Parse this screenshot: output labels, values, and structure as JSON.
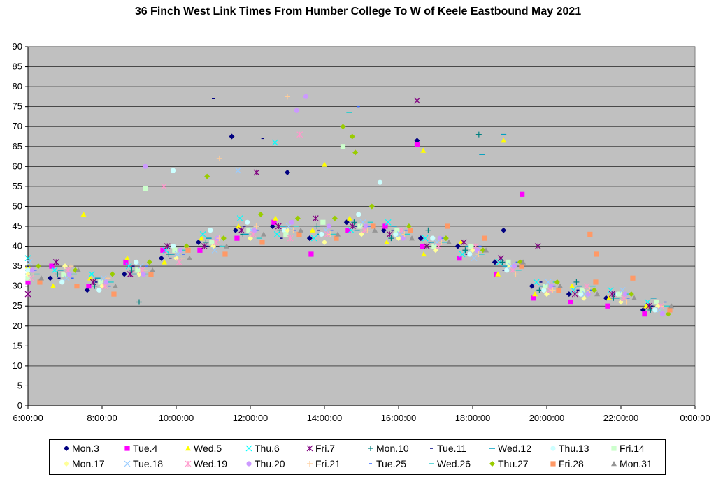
{
  "chart_data": {
    "type": "scatter",
    "title": "36 Finch West Link Times From Humber College To W of Keele Eastbound May 2021",
    "xlabel": "",
    "ylabel": "",
    "ylim": [
      0,
      90
    ],
    "yticks": [
      "0",
      "5",
      "10",
      "15",
      "20",
      "25",
      "30",
      "35",
      "40",
      "45",
      "50",
      "55",
      "60",
      "65",
      "70",
      "75",
      "80",
      "85",
      "90"
    ],
    "xlim": [
      "6:00:00",
      "0:00:00"
    ],
    "xticks": [
      "6:00:00",
      "8:00:00",
      "10:00:00",
      "12:00:00",
      "14:00:00",
      "16:00:00",
      "18:00:00",
      "20:00:00",
      "22:00:00",
      "0:00:00"
    ],
    "grid": "horizontal",
    "background": "#c0c0c0",
    "legend_position": "bottom",
    "x": [
      "6:00",
      "7:00",
      "8:00",
      "9:00",
      "10:00",
      "11:00",
      "12:00",
      "13:00",
      "14:00",
      "15:00",
      "16:00",
      "17:00",
      "18:00",
      "19:00",
      "20:00",
      "21:00",
      "22:00",
      "23:00"
    ],
    "series": [
      {
        "name": "Mon.3",
        "color": "#000080",
        "marker": "diamond",
        "values": [
          34,
          32,
          29,
          33,
          37,
          41,
          44,
          45,
          42,
          46,
          44,
          42,
          40,
          36,
          30,
          28,
          27,
          24
        ],
        "outliers": [
          [
            "11:30",
            67.5
          ],
          [
            "13:00",
            58.5
          ],
          [
            "16:30",
            66.5
          ],
          [
            "18:50",
            44
          ]
        ]
      },
      {
        "name": "Tue.4",
        "color": "#ff00ff",
        "marker": "square",
        "values": [
          31,
          35,
          30,
          36,
          39,
          39,
          42,
          46,
          38,
          44,
          45,
          40,
          37,
          33,
          27,
          26,
          25,
          23
        ],
        "outliers": [
          [
            "16:30",
            65.5
          ],
          [
            "19:20",
            53
          ]
        ]
      },
      {
        "name": "Wed.5",
        "color": "#ffff00",
        "marker": "triangle",
        "values": [
          35,
          30,
          32,
          37,
          36,
          42,
          45,
          47,
          44,
          47,
          41,
          38,
          41,
          33,
          28,
          30,
          27,
          25
        ],
        "outliers": [
          [
            "7:30",
            48
          ],
          [
            "14:00",
            60.5
          ],
          [
            "16:40",
            64
          ],
          [
            "18:50",
            66.5
          ]
        ]
      },
      {
        "name": "Thu.6",
        "color": "#00ffff",
        "marker": "x",
        "values": [
          37,
          34,
          33,
          35,
          39,
          43,
          47,
          43,
          42,
          44,
          46,
          42,
          38,
          36,
          31,
          29,
          29,
          26
        ],
        "outliers": [
          [
            "12:40",
            66
          ]
        ]
      },
      {
        "name": "Fri.7",
        "color": "#800080",
        "marker": "star",
        "values": [
          28,
          36,
          31,
          33,
          40,
          40,
          44,
          45,
          47,
          45,
          43,
          40,
          41,
          37,
          40,
          28,
          28,
          25
        ],
        "outliers": [
          [
            "16:30",
            76.5
          ],
          [
            "12:10",
            58.5
          ]
        ]
      },
      {
        "name": "Mon.10",
        "color": "#008080",
        "marker": "plus",
        "values": [
          34,
          33,
          30,
          34,
          38,
          41,
          43,
          44,
          45,
          46,
          42,
          44,
          39,
          36,
          29,
          31,
          27,
          24
        ],
        "outliers": [
          [
            "18:10",
            68
          ],
          [
            "9:00",
            26
          ]
        ]
      },
      {
        "name": "Tue.11",
        "color": "#000080",
        "marker": "dash",
        "values": [
          35,
          32,
          31,
          35,
          37,
          40,
          45,
          42,
          44,
          45,
          44,
          41,
          38,
          34,
          31,
          29,
          28,
          25
        ],
        "outliers": [
          [
            "11:00",
            77
          ],
          [
            "12:20",
            67
          ]
        ]
      },
      {
        "name": "Wed.12",
        "color": "#00a0c0",
        "marker": "longdash",
        "values": [
          33,
          34,
          32,
          33,
          38,
          42,
          43,
          45,
          43,
          44,
          45,
          41,
          40,
          35,
          30,
          30,
          27,
          27
        ],
        "outliers": [
          [
            "18:15",
            63
          ],
          [
            "18:50",
            68
          ]
        ]
      },
      {
        "name": "Thu.13",
        "color": "#ccffff",
        "marker": "circle",
        "values": [
          34,
          31,
          29,
          36,
          40,
          44,
          46,
          44,
          43,
          48,
          43,
          42,
          38,
          34,
          29,
          28,
          28,
          24
        ],
        "outliers": [
          [
            "9:55",
            59
          ],
          [
            "15:30",
            56
          ]
        ]
      },
      {
        "name": "Fri.14",
        "color": "#ccffcc",
        "marker": "square",
        "values": [
          32,
          33,
          31,
          34,
          39,
          41,
          44,
          43,
          46,
          45,
          44,
          40,
          40,
          36,
          30,
          29,
          28,
          26
        ],
        "outliers": [
          [
            "9:10",
            54.5
          ],
          [
            "14:30",
            65
          ]
        ]
      },
      {
        "name": "Mon.17",
        "color": "#ffff99",
        "marker": "diamond",
        "values": [
          33,
          35,
          30,
          33,
          37,
          40,
          42,
          44,
          41,
          43,
          42,
          39,
          39,
          35,
          28,
          27,
          26,
          25
        ],
        "outliers": []
      },
      {
        "name": "Tue.18",
        "color": "#99ccff",
        "marker": "x",
        "values": [
          36,
          32,
          32,
          35,
          38,
          39,
          44,
          45,
          44,
          46,
          43,
          41,
          37,
          35,
          31,
          28,
          29,
          24
        ],
        "outliers": [
          [
            "11:40",
            59
          ]
        ]
      },
      {
        "name": "Wed.19",
        "color": "#ff99cc",
        "marker": "star",
        "values": [
          32,
          34,
          30,
          34,
          36,
          41,
          43,
          42,
          43,
          44,
          44,
          40,
          40,
          34,
          29,
          30,
          27,
          25
        ],
        "outliers": [
          [
            "9:40",
            55
          ],
          [
            "13:20",
            68
          ]
        ]
      },
      {
        "name": "Thu.20",
        "color": "#cc99ff",
        "marker": "circle",
        "values": [
          34,
          33,
          31,
          33,
          39,
          42,
          44,
          46,
          45,
          45,
          42,
          42,
          39,
          35,
          30,
          28,
          28,
          23
        ],
        "outliers": [
          [
            "9:10",
            60
          ],
          [
            "13:30",
            77.5
          ],
          [
            "13:15",
            74
          ]
        ]
      },
      {
        "name": "Fri.21",
        "color": "#ffcc99",
        "marker": "plus",
        "values": [
          33,
          35,
          32,
          34,
          37,
          42,
          45,
          44,
          43,
          44,
          43,
          41,
          38,
          33,
          29,
          29,
          26,
          25
        ],
        "outliers": [
          [
            "13:00",
            77.5
          ],
          [
            "11:10",
            62
          ]
        ]
      },
      {
        "name": "Tue.25",
        "color": "#3366ff",
        "marker": "dash",
        "values": [
          34,
          32,
          30,
          35,
          38,
          40,
          44,
          44,
          44,
          45,
          44,
          42,
          40,
          36,
          30,
          29,
          27,
          26
        ],
        "outliers": [
          [
            "14:55",
            75
          ]
        ]
      },
      {
        "name": "Wed.26",
        "color": "#33cccc",
        "marker": "longdash",
        "values": [
          33,
          33,
          31,
          33,
          39,
          40,
          42,
          45,
          43,
          46,
          43,
          41,
          38,
          34,
          31,
          30,
          28,
          25
        ],
        "outliers": [
          [
            "14:40",
            73.5
          ]
        ]
      },
      {
        "name": "Thu.27",
        "color": "#99cc00",
        "marker": "diamond",
        "values": [
          35,
          34,
          33,
          36,
          40,
          42,
          48,
          47,
          47,
          50,
          45,
          42,
          39,
          36,
          31,
          29,
          28,
          23
        ],
        "outliers": [
          [
            "14:30",
            70
          ],
          [
            "14:45",
            67.5
          ],
          [
            "14:50",
            63.5
          ],
          [
            "10:50",
            57.5
          ]
        ]
      },
      {
        "name": "Fri.28",
        "color": "#ff9966",
        "marker": "square",
        "values": [
          31,
          30,
          28,
          33,
          39,
          38,
          41,
          43,
          42,
          45,
          44,
          45,
          42,
          35,
          29,
          31,
          32,
          24
        ],
        "outliers": [
          [
            "21:10",
            43
          ],
          [
            "21:20",
            38
          ]
        ]
      },
      {
        "name": "Mon.31",
        "color": "#969696",
        "marker": "triangle",
        "values": [
          32,
          34,
          30,
          34,
          37,
          40,
          43,
          44,
          43,
          44,
          42,
          41,
          39,
          36,
          30,
          28,
          27,
          25
        ],
        "outliers": []
      }
    ]
  }
}
